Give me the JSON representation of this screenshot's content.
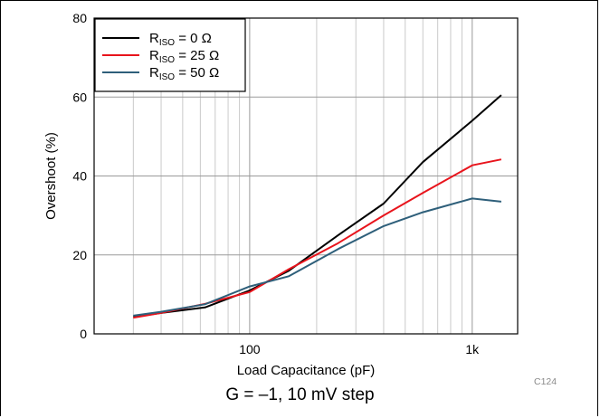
{
  "caption": "G = –1, 10 mV step",
  "chart_code": "C124",
  "chart_data": {
    "type": "line",
    "title": "",
    "xlabel": "Load Capacitance (pF)",
    "ylabel": "Overshoot (%)",
    "xscale": "log",
    "xlim": [
      20,
      1600
    ],
    "ylim": [
      0,
      80
    ],
    "x_ticks": [
      {
        "value": 100,
        "label": "100"
      },
      {
        "value": 1000,
        "label": "1k"
      }
    ],
    "y_ticks": [
      {
        "value": 0,
        "label": "0"
      },
      {
        "value": 20,
        "label": "20"
      },
      {
        "value": 40,
        "label": "40"
      },
      {
        "value": 60,
        "label": "60"
      },
      {
        "value": 80,
        "label": "80"
      }
    ],
    "grid": true,
    "legend_position": "top-left",
    "series": [
      {
        "name_main": "R",
        "name_sub": "ISO",
        "name_rest": " = 0 Ω",
        "color": "#000000",
        "x": [
          30,
          40,
          63,
          100,
          150,
          250,
          400,
          600,
          1000,
          1350
        ],
        "y": [
          4.3,
          5.3,
          6.7,
          11.0,
          16.0,
          25.0,
          33.0,
          43.5,
          54.0,
          60.5
        ]
      },
      {
        "name_main": "R",
        "name_sub": "ISO",
        "name_rest": " = 25 Ω",
        "color": "#e8141c",
        "x": [
          30,
          40,
          63,
          100,
          150,
          250,
          400,
          600,
          1000,
          1350
        ],
        "y": [
          4.1,
          5.3,
          7.6,
          10.6,
          16.4,
          23.0,
          30.0,
          35.7,
          42.7,
          44.2
        ]
      },
      {
        "name_main": "R",
        "name_sub": "ISO",
        "name_rest": " = 50 Ω",
        "color": "#2e5f7a",
        "x": [
          30,
          40,
          63,
          100,
          150,
          250,
          400,
          600,
          1000,
          1350
        ],
        "y": [
          4.6,
          5.6,
          7.5,
          12.0,
          14.6,
          21.5,
          27.3,
          30.8,
          34.3,
          33.5
        ]
      }
    ]
  }
}
